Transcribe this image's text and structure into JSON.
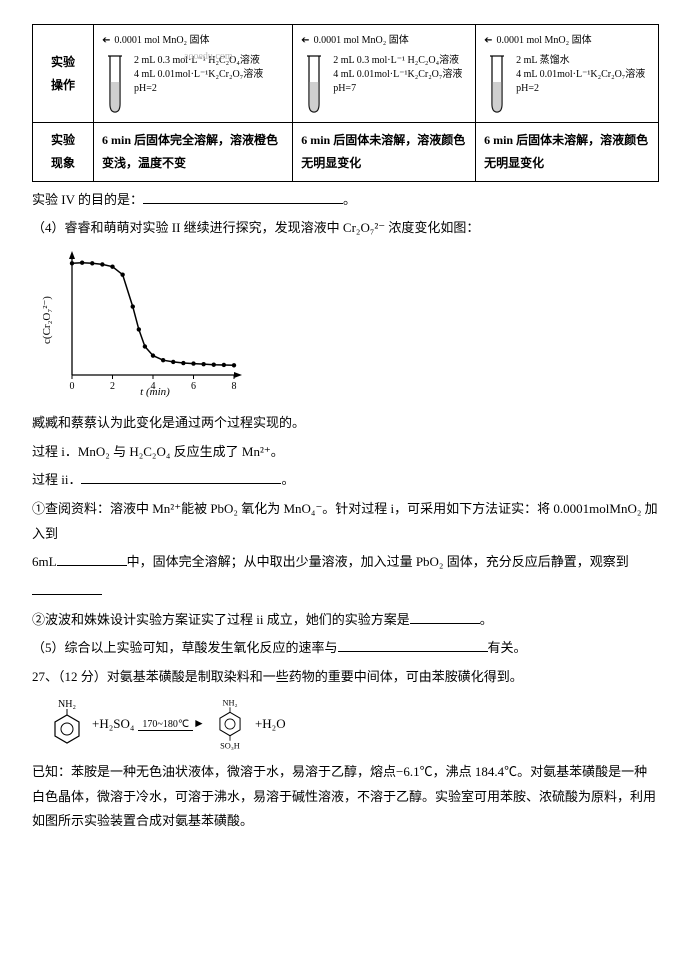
{
  "table": {
    "row1_label_a": "实验",
    "row1_label_b": "操作",
    "row2_label_a": "实验",
    "row2_label_b": "现象",
    "mno2_label": "0.0001 mol MnO₂ 固体",
    "cellA_l1": "2 mL 0.3 mol·L⁻¹ H₂C₂O₄溶液",
    "cellA_l2": "4 mL 0.01mol·L⁻¹K₂Cr₂O₇溶液",
    "cellA_l3": "pH=2",
    "cellB_l1": "2 mL 0.3 mol·L⁻¹ H₂C₂O₄溶液",
    "cellB_l2": "4 mL 0.01mol·L⁻¹K₂Cr₂O₇溶液",
    "cellB_l3": "pH=7",
    "cellC_l1": "2 mL 蒸馏水",
    "cellC_l2": "4 mL 0.01mol·L⁻¹K₂Cr₂O₇溶液",
    "cellC_l3": "pH=2",
    "phenA": "6 min 后固体完全溶解，溶液橙色变浅，温度不变",
    "phenB": "6 min 后固体未溶解，溶液颜色无明显变化",
    "phenC": "6 min 后固体未溶解，溶液颜色无明显变化",
    "watermark": "aooedu.com"
  },
  "lines": {
    "l1": "实验 IV 的目的是：",
    "l1_end": "。",
    "l2": "（4）睿睿和萌萌对实验 II 继续进行探究，发现溶液中 Cr₂O₇²⁻ 浓度变化如图：",
    "l3": "臧臧和蔡蔡认为此变化是通过两个过程实现的。",
    "l4": "过程 i．MnO₂ 与 H₂C₂O₄ 反应生成了 Mn²⁺。",
    "l5": "过程 ii．",
    "l5_end": "。",
    "l6a": "①查阅资料：溶液中 Mn²⁺能被 PbO₂ 氧化为 MnO₄⁻。针对过程 i，可采用如下方法证实：将 0.0001molMnO₂ 加入到",
    "l6b": "6mL",
    "l6c": "中，固体完全溶解；从中取出少量溶液，加入过量 PbO₂ 固体，充分反应后静置，观察到",
    "l7": "②波波和姝姝设计实验方案证实了过程 ii 成立，她们的实验方案是",
    "l7_end": "。",
    "l8a": "（5）综合以上实验可知，草酸发生氧化反应的速率与",
    "l8b": "有关。",
    "l9": "27、（12 分）对氨基苯磺酸是制取染料和一些药物的重要中间体，可由苯胺磺化得到。",
    "l10": "已知：苯胺是一种无色油状液体，微溶于水，易溶于乙醇，熔点−6.1℃，沸点 184.4℃。对氨基苯磺酸是一种白色晶体，微溶于冷水，可溶于沸水，易溶于碱性溶液，不溶于乙醇。实验室可用苯胺、浓硫酸为原料，利用如图所示实验装置合成对氨基苯磺酸。"
  },
  "reaction": {
    "nh2": "NH₂",
    "so3h": "SO₃H",
    "h2so4": "+H₂SO₄",
    "temp": "170~180℃",
    "h2o": "+H₂O"
  },
  "chart": {
    "ylabel": "c(Cr₂O₇²⁻)",
    "xlabel": "t (min)",
    "xticks": [
      "0",
      "2",
      "4",
      "6",
      "8"
    ],
    "points": [
      [
        0,
        0.98
      ],
      [
        0.5,
        0.985
      ],
      [
        1.0,
        0.98
      ],
      [
        1.5,
        0.97
      ],
      [
        2.0,
        0.95
      ],
      [
        2.5,
        0.88
      ],
      [
        3.0,
        0.6
      ],
      [
        3.3,
        0.4
      ],
      [
        3.6,
        0.25
      ],
      [
        4.0,
        0.17
      ],
      [
        4.5,
        0.13
      ],
      [
        5.0,
        0.115
      ],
      [
        5.5,
        0.105
      ],
      [
        6.0,
        0.1
      ],
      [
        6.5,
        0.095
      ],
      [
        7.0,
        0.09
      ],
      [
        7.5,
        0.088
      ],
      [
        8.0,
        0.085
      ]
    ],
    "stroke": "#000000",
    "bg": "#ffffff"
  }
}
